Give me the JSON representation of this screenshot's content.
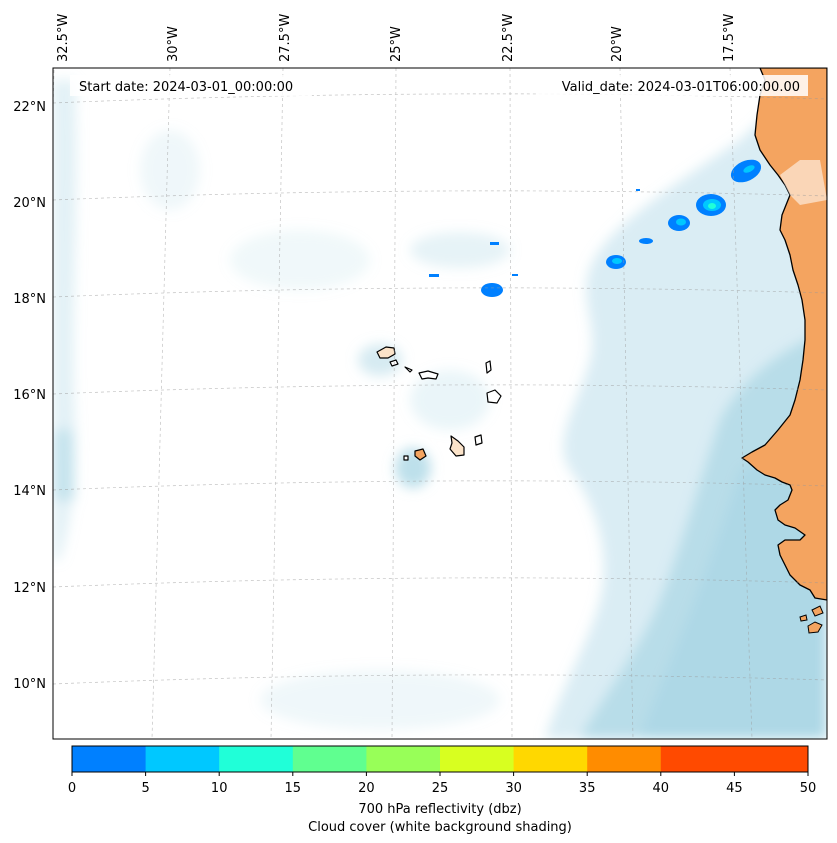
{
  "map": {
    "start_date": "Start date: 2024-03-01_00:00:00",
    "valid_date": "Valid_date: 2024-03-01T06:00:00.00",
    "lon_labels": [
      "32.5°W",
      "30°W",
      "27.5°W",
      "25°W",
      "22.5°W",
      "20°W",
      "17.5°W"
    ],
    "lat_labels": [
      "22°N",
      "20°N",
      "18°N",
      "16°N",
      "14°N",
      "12°N",
      "10°N"
    ],
    "land_color": "#f4a460",
    "ocean_cloud_color": "#add8e6",
    "coastline_color": "#000000"
  },
  "colorbar": {
    "ticks": [
      "0",
      "5",
      "10",
      "15",
      "20",
      "25",
      "30",
      "35",
      "40",
      "45",
      "50"
    ],
    "colors": [
      "#0080ff",
      "#00c8ff",
      "#20ffd8",
      "#60ff90",
      "#98ff58",
      "#d8ff20",
      "#ffd800",
      "#ff8c00",
      "#ff4a00",
      "#ff4a00"
    ],
    "label_line1": "700 hPa reflectivity (dbz)",
    "label_line2": "Cloud cover (white background shading)"
  }
}
